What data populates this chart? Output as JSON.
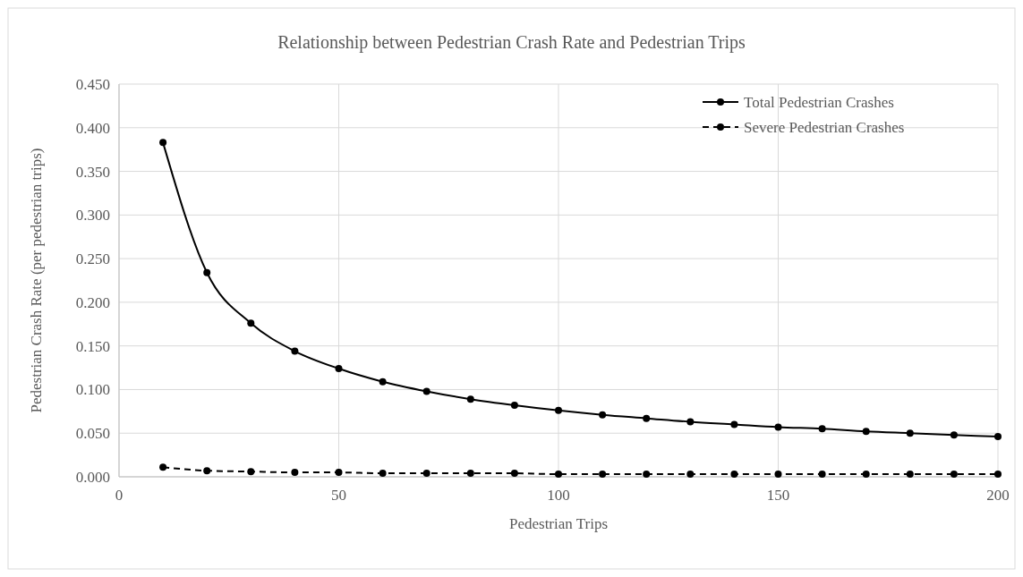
{
  "chart_data": {
    "type": "line",
    "title": "Relationship between Pedestrian Crash Rate and Pedestrian Trips",
    "xlabel": "Pedestrian Trips",
    "ylabel": "Pedestrian Crash Rate (per pedestrian trips)",
    "x": [
      10,
      20,
      30,
      40,
      50,
      60,
      70,
      80,
      90,
      100,
      110,
      120,
      130,
      140,
      150,
      160,
      170,
      180,
      190,
      200
    ],
    "series": [
      {
        "name": "Total Pedestrian Crashes",
        "color": "#000000",
        "line_style": "solid",
        "values": [
          0.383,
          0.234,
          0.176,
          0.144,
          0.124,
          0.109,
          0.098,
          0.089,
          0.082,
          0.076,
          0.071,
          0.067,
          0.063,
          0.06,
          0.057,
          0.055,
          0.052,
          0.05,
          0.048,
          0.046
        ]
      },
      {
        "name": "Severe Pedestrian Crashes",
        "color": "#000000",
        "line_style": "dashed",
        "values": [
          0.011,
          0.007,
          0.006,
          0.005,
          0.005,
          0.004,
          0.004,
          0.004,
          0.004,
          0.003,
          0.003,
          0.003,
          0.003,
          0.003,
          0.003,
          0.003,
          0.003,
          0.003,
          0.003,
          0.003
        ]
      }
    ],
    "xlim": [
      0,
      200
    ],
    "xticks": [
      0,
      50,
      100,
      150,
      200
    ],
    "ylim": [
      0,
      0.45
    ],
    "yticks": [
      {
        "value": 0,
        "label": "0.000"
      },
      {
        "value": 0.05,
        "label": "0.050"
      },
      {
        "value": 0.1,
        "label": "0.100"
      },
      {
        "value": 0.15,
        "label": "0.150"
      },
      {
        "value": 0.2,
        "label": "0.200"
      },
      {
        "value": 0.25,
        "label": "0.250"
      },
      {
        "value": 0.3,
        "label": "0.300"
      },
      {
        "value": 0.35,
        "label": "0.350"
      },
      {
        "value": 0.4,
        "label": "0.400"
      },
      {
        "value": 0.45,
        "label": "0.450"
      }
    ],
    "grid": true,
    "legend": "top right",
    "marker": "circle"
  }
}
